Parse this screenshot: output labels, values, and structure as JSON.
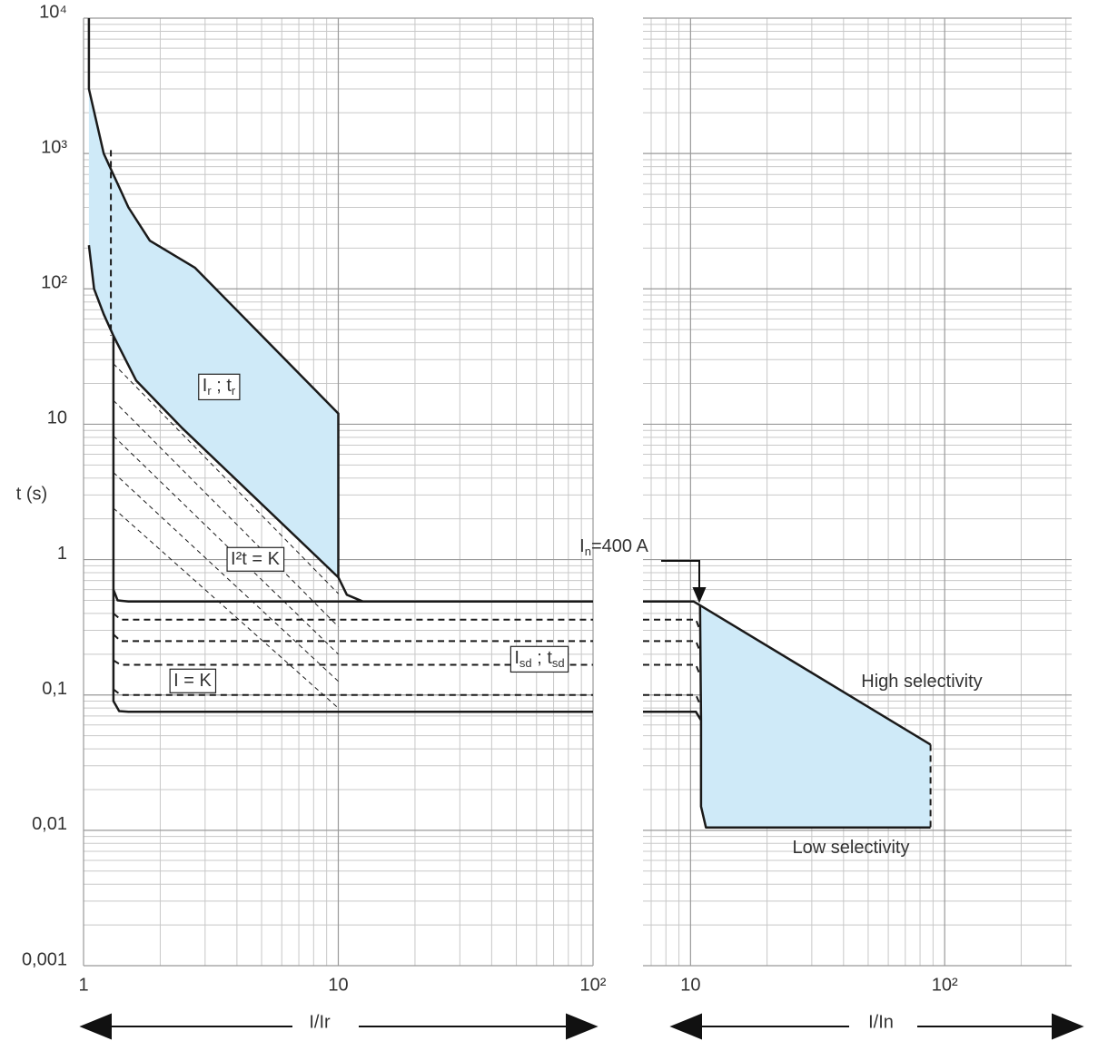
{
  "chart_data": [
    {
      "type": "line",
      "xscale": "log",
      "yscale": "log",
      "grid": true,
      "color": "#1a1a1a",
      "xlabel": "I/Ir",
      "ylabel": "t (s)",
      "xlim": [
        1,
        100
      ],
      "ylim": [
        0.001,
        10000
      ],
      "xticks": [
        1,
        10,
        {
          "value": 100,
          "label": "10²"
        }
      ],
      "yticks": [
        {
          "value": 0.001,
          "label": "0,001"
        },
        {
          "value": 0.01,
          "label": "0,01"
        },
        {
          "value": 0.1,
          "label": "0,1"
        },
        1,
        10,
        {
          "value": 100,
          "label": "10²"
        },
        {
          "value": 1000,
          "label": "10³"
        },
        {
          "value": 10000,
          "label": "10⁴"
        }
      ],
      "series": [
        {
          "fill": "#cfeaf8",
          "x": [
            1.05,
            1.2,
            1.5,
            1.82,
            2.74,
            10,
            10,
            2.42,
            1.61,
            1.31,
            1.2,
            1.1,
            1.05
          ],
          "values": [
            3000,
            1000,
            400,
            227,
            143,
            12,
            0.74,
            9.5,
            21,
            45,
            65,
            100,
            210
          ]
        },
        {
          "style": "solid",
          "x": [
            1.05,
            1.05,
            1.2,
            1.5,
            1.82,
            2.74,
            10,
            10
          ],
          "values": [
            10000,
            3000,
            1000,
            400,
            227,
            143,
            12,
            0.74
          ]
        },
        {
          "style": "solid",
          "x": [
            1.05,
            1.1,
            1.2,
            1.31,
            1.61,
            2.42,
            10,
            10.8,
            12.5
          ],
          "values": [
            210,
            100,
            65,
            45,
            21,
            9.5,
            0.74,
            0.55,
            0.49
          ]
        },
        {
          "style": "solid",
          "x": [
            1.31,
            1.31,
            1.36,
            1.5,
            100
          ],
          "values": [
            45,
            0.6,
            0.5,
            0.49,
            0.49
          ]
        },
        {
          "style": "solid",
          "x": [
            1.31,
            1.31,
            1.38,
            1.5,
            100
          ],
          "values": [
            0.6,
            0.09,
            0.076,
            0.075,
            0.075
          ]
        },
        {
          "style": "dashed",
          "x": [
            1.28,
            1.28
          ],
          "values": [
            1060,
            45
          ]
        },
        {
          "style": "dashed",
          "x": [
            1.31,
            1.4,
            100
          ],
          "values": [
            0.4,
            0.36,
            0.36
          ]
        },
        {
          "style": "dashed",
          "x": [
            1.31,
            1.4,
            100
          ],
          "values": [
            0.28,
            0.25,
            0.25
          ]
        },
        {
          "style": "dashed",
          "x": [
            1.31,
            1.4,
            100
          ],
          "values": [
            0.18,
            0.167,
            0.167
          ]
        },
        {
          "style": "dashed",
          "x": [
            1.31,
            1.4,
            100
          ],
          "values": [
            0.11,
            0.1,
            0.1
          ]
        },
        {
          "style": "thin-dashed",
          "x": [
            1.31,
            10
          ],
          "values": [
            28,
            0.56
          ]
        },
        {
          "style": "thin-dashed",
          "x": [
            1.31,
            10
          ],
          "values": [
            15,
            0.32
          ]
        },
        {
          "style": "thin-dashed",
          "x": [
            1.31,
            10
          ],
          "values": [
            8.2,
            0.2
          ]
        },
        {
          "style": "thin-dashed",
          "x": [
            1.31,
            10
          ],
          "values": [
            4.4,
            0.126
          ]
        },
        {
          "style": "thin-dashed",
          "x": [
            1.31,
            10
          ],
          "values": [
            2.4,
            0.08
          ]
        }
      ],
      "annotations": [
        {
          "boxed": true,
          "parts": [
            {
              "text": "I"
            },
            {
              "text": "r",
              "sub": true
            },
            {
              "text": " ; t"
            },
            {
              "text": "r",
              "sub": true
            }
          ]
        },
        {
          "boxed": true,
          "parts": [
            {
              "text": "I²t = K"
            }
          ]
        },
        {
          "boxed": true,
          "parts": [
            {
              "text": "I = K"
            }
          ]
        },
        {
          "boxed": true,
          "parts": [
            {
              "text": "I"
            },
            {
              "text": "sd",
              "sub": true
            },
            {
              "text": " ; t"
            },
            {
              "text": "sd",
              "sub": true
            }
          ]
        }
      ]
    },
    {
      "type": "line",
      "xscale": "log",
      "yscale": "log",
      "grid": true,
      "sharey": true,
      "color": "#1a1a1a",
      "xlabel": "I/In",
      "xlim": [
        6.5,
        316
      ],
      "xticks": [
        10,
        {
          "value": 100,
          "label": "10²"
        }
      ],
      "series": [
        {
          "fill": "#cfeaf8",
          "x": [
            10.9,
            88,
            88,
            11.5,
            11,
            11
          ],
          "values": [
            0.46,
            0.043,
            0.0105,
            0.0105,
            0.015,
            0.46
          ]
        },
        {
          "style": "solid",
          "x": [
            6.5,
            10.3,
            10.9,
            88
          ],
          "values": [
            0.49,
            0.49,
            0.46,
            0.043
          ]
        },
        {
          "style": "solid",
          "x": [
            10.9,
            11,
            11,
            11.5,
            88
          ],
          "values": [
            0.46,
            0.065,
            0.015,
            0.0105,
            0.0105
          ]
        },
        {
          "style": "solid",
          "x": [
            6.5,
            10.5,
            11
          ],
          "values": [
            0.075,
            0.075,
            0.065
          ]
        },
        {
          "style": "dashed",
          "x": [
            88,
            88
          ],
          "values": [
            0.043,
            0.0105
          ]
        },
        {
          "style": "dashed",
          "x": [
            6.5,
            10.5,
            10.9
          ],
          "values": [
            0.36,
            0.36,
            0.3
          ]
        },
        {
          "style": "dashed",
          "x": [
            6.5,
            10.5,
            10.9
          ],
          "values": [
            0.25,
            0.25,
            0.21
          ]
        },
        {
          "style": "dashed",
          "x": [
            6.5,
            10.5,
            10.9
          ],
          "values": [
            0.167,
            0.167,
            0.14
          ]
        },
        {
          "style": "dashed",
          "x": [
            6.5,
            10.5,
            10.9
          ],
          "values": [
            0.1,
            0.1,
            0.085
          ]
        }
      ],
      "annotations": [
        {
          "boxed": false,
          "parts": [
            {
              "text": "I"
            },
            {
              "text": "n",
              "sub": true
            },
            {
              "text": "=400 A"
            }
          ]
        },
        {
          "boxed": false,
          "parts": [
            {
              "text": "High selectivity"
            }
          ]
        },
        {
          "boxed": false,
          "parts": [
            {
              "text": "Low selectivity"
            }
          ]
        }
      ]
    }
  ]
}
